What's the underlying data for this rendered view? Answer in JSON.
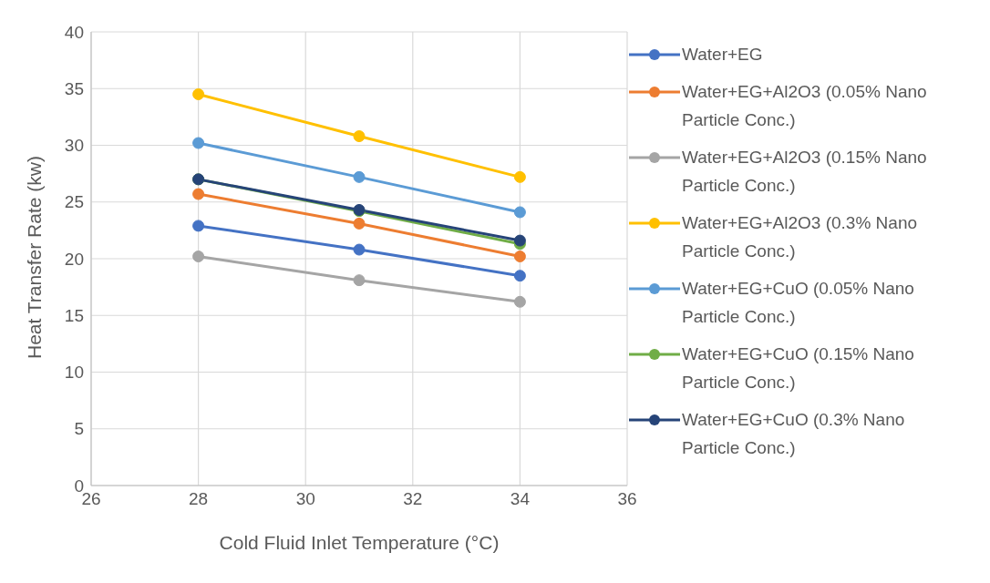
{
  "chart_data": {
    "type": "line",
    "xlabel": "Cold Fluid Inlet Temperature (°C)",
    "ylabel": "Heat Transfer Rate (kw)",
    "x": [
      28,
      31,
      34
    ],
    "xlim": [
      26,
      36
    ],
    "xticks": [
      26,
      28,
      30,
      32,
      34,
      36
    ],
    "ylim": [
      0,
      40
    ],
    "yticks": [
      0,
      5,
      10,
      15,
      20,
      25,
      30,
      35,
      40
    ],
    "grid": true,
    "legend": "right",
    "marker": "circle",
    "line_style": "solid",
    "series": [
      {
        "name": "Water+EG",
        "color": "#4472c4",
        "values": [
          22.9,
          20.8,
          18.5
        ]
      },
      {
        "name": "Water+EG+Al2O3 (0.05% Nano Particle Conc.)",
        "color": "#ed7d31",
        "values": [
          25.7,
          23.1,
          20.2
        ]
      },
      {
        "name": "Water+EG+Al2O3 (0.15% Nano Particle Conc.)",
        "color": "#a5a5a5",
        "values": [
          20.2,
          18.1,
          16.2
        ]
      },
      {
        "name": "Water+EG+Al2O3 (0.3% Nano Particle Conc.)",
        "color": "#ffc000",
        "values": [
          34.5,
          30.8,
          27.2
        ]
      },
      {
        "name": "Water+EG+CuO (0.05% Nano Particle Conc.)",
        "color": "#5b9bd5",
        "values": [
          30.2,
          27.2,
          24.1
        ]
      },
      {
        "name": "Water+EG+CuO (0.15% Nano Particle Conc.)",
        "color": "#70ad47",
        "values": [
          27.0,
          24.2,
          21.3
        ]
      },
      {
        "name": "Water+EG+CuO (0.3% Nano Particle Conc.)",
        "color": "#264478",
        "values": [
          27.0,
          24.3,
          21.6
        ]
      }
    ]
  }
}
